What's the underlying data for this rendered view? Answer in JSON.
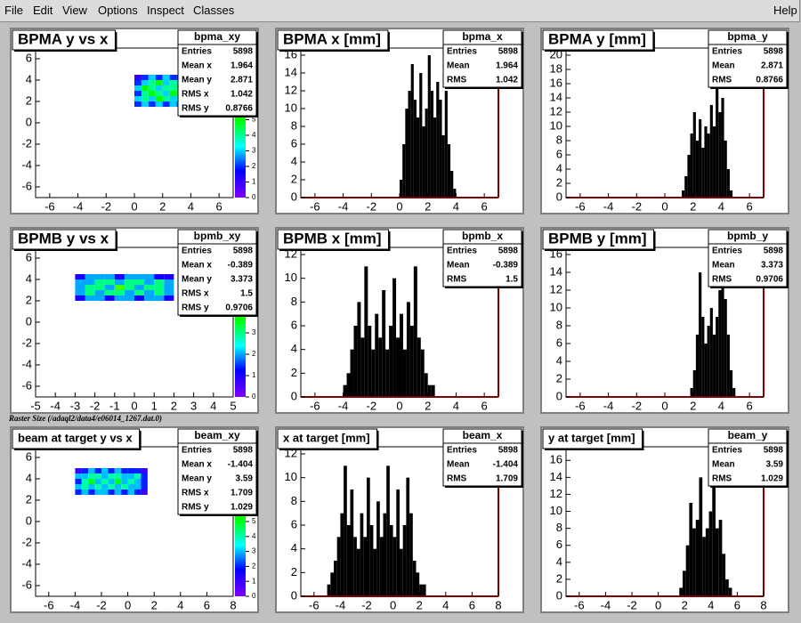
{
  "menu": [
    "File",
    "Edit",
    "View",
    "Options",
    "Inspect",
    "Classes"
  ],
  "help": "Help",
  "note": "Raster Size (/adaql2/data4/e06014_1267.dat.0)",
  "chart_data": [
    {
      "type": "heatmap",
      "title": "BPMA y vs x",
      "xlim": [
        -7,
        7
      ],
      "ylim": [
        -7,
        7
      ],
      "xticks": [
        -6,
        -4,
        -2,
        0,
        2,
        4,
        6
      ],
      "yticks": [
        -6,
        -4,
        -2,
        0,
        2,
        4,
        6
      ],
      "xbins": [
        0,
        0.5,
        1,
        1.5,
        2,
        2.5,
        3,
        3.5,
        4
      ],
      "ybins": [
        1.5,
        2,
        2.5,
        3,
        3.5,
        4,
        4.5
      ],
      "z": [
        [
          2,
          3,
          2,
          3,
          2,
          3,
          2,
          1
        ],
        [
          3,
          4,
          3,
          5,
          4,
          3,
          4,
          2
        ],
        [
          2,
          4,
          5,
          4,
          3,
          5,
          3,
          2
        ],
        [
          3,
          5,
          4,
          3,
          4,
          4,
          5,
          2
        ],
        [
          2,
          3,
          4,
          5,
          3,
          4,
          3,
          2
        ],
        [
          1,
          2,
          3,
          2,
          3,
          2,
          2,
          1
        ]
      ],
      "zlim": [
        0,
        9.6
      ],
      "zticks": [
        0,
        1,
        2,
        3,
        4,
        5
      ],
      "stats": {
        "name": "bpma_xy",
        "labels": [
          "Entries",
          "Mean x",
          "Mean y",
          "RMS x",
          "RMS y"
        ],
        "values": [
          5898,
          1.964,
          2.871,
          1.042,
          0.8766
        ]
      }
    },
    {
      "type": "histogram",
      "title": "BPMA x [mm]",
      "xlim": [
        -7,
        7
      ],
      "ylim": [
        0,
        16.8
      ],
      "xticks": [
        -6,
        -4,
        -2,
        0,
        2,
        4,
        6
      ],
      "yticks": [
        0,
        2,
        4,
        6,
        8,
        10,
        12,
        14,
        16
      ],
      "color": "#000000",
      "bins": [
        0,
        0.2,
        0.4,
        0.6,
        0.8,
        1,
        1.2,
        1.4,
        1.6,
        1.8,
        2,
        2.2,
        2.4,
        2.6,
        2.8,
        3,
        3.2,
        3.4,
        3.6,
        3.8,
        4
      ],
      "counts": [
        2,
        6,
        10,
        12,
        15,
        11,
        9,
        14,
        8,
        10,
        16,
        12,
        9,
        13,
        11,
        7,
        12,
        6,
        3,
        1
      ],
      "stats": {
        "name": "bpma_x",
        "labels": [
          "Entries",
          "Mean",
          "RMS"
        ],
        "values": [
          5898,
          1.964,
          1.042
        ]
      }
    },
    {
      "type": "histogram",
      "title": "BPMA y [mm]",
      "xlim": [
        -7,
        7
      ],
      "ylim": [
        0,
        21
      ],
      "xticks": [
        -6,
        -4,
        -2,
        0,
        2,
        4,
        6
      ],
      "yticks": [
        0,
        2,
        4,
        6,
        8,
        10,
        12,
        14,
        16,
        18,
        20
      ],
      "color": "#000000",
      "bins": [
        1.2,
        1.4,
        1.6,
        1.8,
        2,
        2.2,
        2.4,
        2.6,
        2.8,
        3,
        3.2,
        3.4,
        3.6,
        3.8,
        4,
        4.2,
        4.4,
        4.6,
        4.8
      ],
      "counts": [
        1,
        3,
        6,
        9,
        12,
        8,
        11,
        7,
        10,
        9,
        13,
        10,
        19,
        12,
        14,
        8,
        4,
        1
      ],
      "stats": {
        "name": "bpma_y",
        "labels": [
          "Entries",
          "Mean",
          "RMS"
        ],
        "values": [
          5898,
          2.871,
          0.8766
        ]
      }
    },
    {
      "type": "heatmap",
      "title": "BPMB y vs x",
      "xlim": [
        -5,
        5
      ],
      "ylim": [
        -7,
        7
      ],
      "xticks": [
        -5,
        -4,
        -3,
        -2,
        -1,
        0,
        1,
        2,
        3,
        4,
        5
      ],
      "yticks": [
        -6,
        -4,
        -2,
        0,
        2,
        4,
        6
      ],
      "xbins": [
        -3,
        -2.5,
        -2,
        -1.5,
        -1,
        -0.5,
        0,
        0.5,
        1,
        1.5,
        2
      ],
      "ybins": [
        2,
        2.5,
        3,
        3.5,
        4,
        4.5
      ],
      "z": [
        [
          1,
          2,
          2,
          1,
          2,
          2,
          1,
          2,
          2,
          1
        ],
        [
          2,
          3,
          2,
          3,
          3,
          2,
          3,
          2,
          3,
          2
        ],
        [
          2,
          3,
          3,
          2,
          4,
          3,
          2,
          3,
          3,
          2
        ],
        [
          2,
          2,
          3,
          3,
          2,
          3,
          3,
          2,
          3,
          2
        ],
        [
          1,
          2,
          2,
          2,
          1,
          2,
          2,
          2,
          1,
          1
        ]
      ],
      "zlim": [
        0,
        7
      ],
      "zticks": [
        0,
        1,
        2,
        3
      ],
      "stats": {
        "name": "bpmb_xy",
        "labels": [
          "Entries",
          "Mean x",
          "Mean y",
          "RMS x",
          "RMS y"
        ],
        "values": [
          5898,
          -0.389,
          3.373,
          1.5,
          0.9706
        ]
      }
    },
    {
      "type": "histogram",
      "title": "BPMB x [mm]",
      "xlim": [
        -7,
        7
      ],
      "ylim": [
        0,
        12.6
      ],
      "xticks": [
        -6,
        -4,
        -2,
        0,
        2,
        4,
        6
      ],
      "yticks": [
        0,
        2,
        4,
        6,
        8,
        10,
        12
      ],
      "color": "#000000",
      "bins": [
        -4,
        -3.75,
        -3.5,
        -3.25,
        -3,
        -2.75,
        -2.5,
        -2.25,
        -2,
        -1.75,
        -1.5,
        -1.25,
        -1,
        -0.75,
        -0.5,
        -0.25,
        0,
        0.25,
        0.5,
        0.75,
        1,
        1.25,
        1.5,
        1.75,
        2,
        2.25,
        2.5
      ],
      "counts": [
        1,
        2,
        4,
        6,
        8,
        5,
        11,
        6,
        4,
        7,
        5,
        9,
        4,
        6,
        10,
        5,
        7,
        4,
        8,
        6,
        11,
        5,
        4,
        2,
        1,
        1
      ],
      "stats": {
        "name": "bpmb_x",
        "labels": [
          "Entries",
          "Mean",
          "RMS"
        ],
        "values": [
          5898,
          -0.389,
          1.5
        ]
      }
    },
    {
      "type": "histogram",
      "title": "BPMB y [mm]",
      "xlim": [
        -7,
        7
      ],
      "ylim": [
        0,
        16.8
      ],
      "xticks": [
        -6,
        -4,
        -2,
        0,
        2,
        4,
        6
      ],
      "yticks": [
        0,
        2,
        4,
        6,
        8,
        10,
        12,
        14,
        16
      ],
      "color": "#000000",
      "bins": [
        1.8,
        2,
        2.2,
        2.4,
        2.6,
        2.8,
        3,
        3.2,
        3.4,
        3.6,
        3.8,
        4,
        4.2,
        4.4,
        4.6,
        4.8,
        5
      ],
      "counts": [
        1,
        3,
        7,
        14,
        9,
        6,
        8,
        10,
        7,
        9,
        12,
        16,
        11,
        7,
        3,
        1
      ],
      "stats": {
        "name": "bpmb_y",
        "labels": [
          "Entries",
          "Mean",
          "RMS"
        ],
        "values": [
          5898,
          3.373,
          0.9706
        ]
      }
    },
    {
      "type": "heatmap",
      "title": "beam at target y vs x",
      "xlim": [
        -7,
        8
      ],
      "ylim": [
        -7,
        7
      ],
      "xticks": [
        -6,
        -4,
        -2,
        0,
        2,
        4,
        6,
        8
      ],
      "yticks": [
        -6,
        -4,
        -2,
        0,
        2,
        4,
        6
      ],
      "xbins": [
        -4,
        -3.5,
        -3,
        -2.5,
        -2,
        -1.5,
        -1,
        -0.5,
        0,
        0.5,
        1,
        1.5
      ],
      "ybins": [
        2.5,
        3,
        3.5,
        4,
        4.5,
        5
      ],
      "z": [
        [
          2,
          3,
          2,
          3,
          3,
          2,
          3,
          2,
          3,
          2,
          1
        ],
        [
          3,
          4,
          3,
          4,
          3,
          4,
          3,
          4,
          3,
          3,
          2
        ],
        [
          2,
          4,
          5,
          3,
          4,
          3,
          5,
          3,
          4,
          3,
          2
        ],
        [
          3,
          3,
          4,
          4,
          3,
          4,
          4,
          3,
          3,
          4,
          2
        ],
        [
          1,
          2,
          3,
          2,
          3,
          2,
          3,
          2,
          2,
          2,
          1
        ]
      ],
      "zlim": [
        0,
        10
      ],
      "zticks": [
        0,
        1,
        2,
        3,
        4,
        5
      ],
      "stats": {
        "name": "beam_xy",
        "labels": [
          "Entries",
          "Mean x",
          "Mean y",
          "RMS x",
          "RMS y"
        ],
        "values": [
          5898,
          -1.404,
          3.59,
          1.709,
          1.029
        ]
      }
    },
    {
      "type": "histogram",
      "title": "x at target [mm]",
      "xlim": [
        -7,
        8
      ],
      "ylim": [
        0,
        12.6
      ],
      "xticks": [
        -6,
        -4,
        -2,
        0,
        2,
        4,
        6,
        8
      ],
      "yticks": [
        0,
        2,
        4,
        6,
        8,
        10,
        12
      ],
      "color": "#000000",
      "bins": [
        -5,
        -4.75,
        -4.5,
        -4.25,
        -4,
        -3.75,
        -3.5,
        -3.25,
        -3,
        -2.75,
        -2.5,
        -2.25,
        -2,
        -1.75,
        -1.5,
        -1.25,
        -1,
        -0.75,
        -0.5,
        -0.25,
        0,
        0.25,
        0.5,
        0.75,
        1,
        1.25,
        1.5,
        1.75,
        2,
        2.25,
        2.5
      ],
      "counts": [
        1,
        2,
        3,
        5,
        7,
        11,
        6,
        9,
        5,
        4,
        7,
        5,
        10,
        6,
        4,
        8,
        5,
        7,
        11,
        6,
        5,
        9,
        4,
        6,
        10,
        7,
        3,
        2,
        1,
        1
      ],
      "stats": {
        "name": "beam_x",
        "labels": [
          "Entries",
          "Mean",
          "RMS"
        ],
        "values": [
          5898,
          -1.404,
          1.709
        ]
      }
    },
    {
      "type": "histogram",
      "title": "y at target [mm]",
      "xlim": [
        -7,
        8
      ],
      "ylim": [
        0,
        17.6
      ],
      "xticks": [
        -6,
        -4,
        -2,
        0,
        2,
        4,
        6,
        8
      ],
      "yticks": [
        0,
        2,
        4,
        6,
        8,
        10,
        12,
        14,
        16
      ],
      "color": "#000000",
      "bins": [
        1.6,
        1.85,
        2.1,
        2.35,
        2.6,
        2.85,
        3.1,
        3.35,
        3.6,
        3.85,
        4.1,
        4.35,
        4.6,
        4.85,
        5.1,
        5.35,
        5.6
      ],
      "counts": [
        1,
        3,
        6,
        11,
        8,
        9,
        14,
        7,
        8,
        10,
        13,
        8,
        9,
        5,
        2,
        1
      ],
      "stats": {
        "name": "beam_y",
        "labels": [
          "Entries",
          "Mean",
          "RMS"
        ],
        "values": [
          5898,
          3.59,
          1.029
        ]
      }
    }
  ]
}
